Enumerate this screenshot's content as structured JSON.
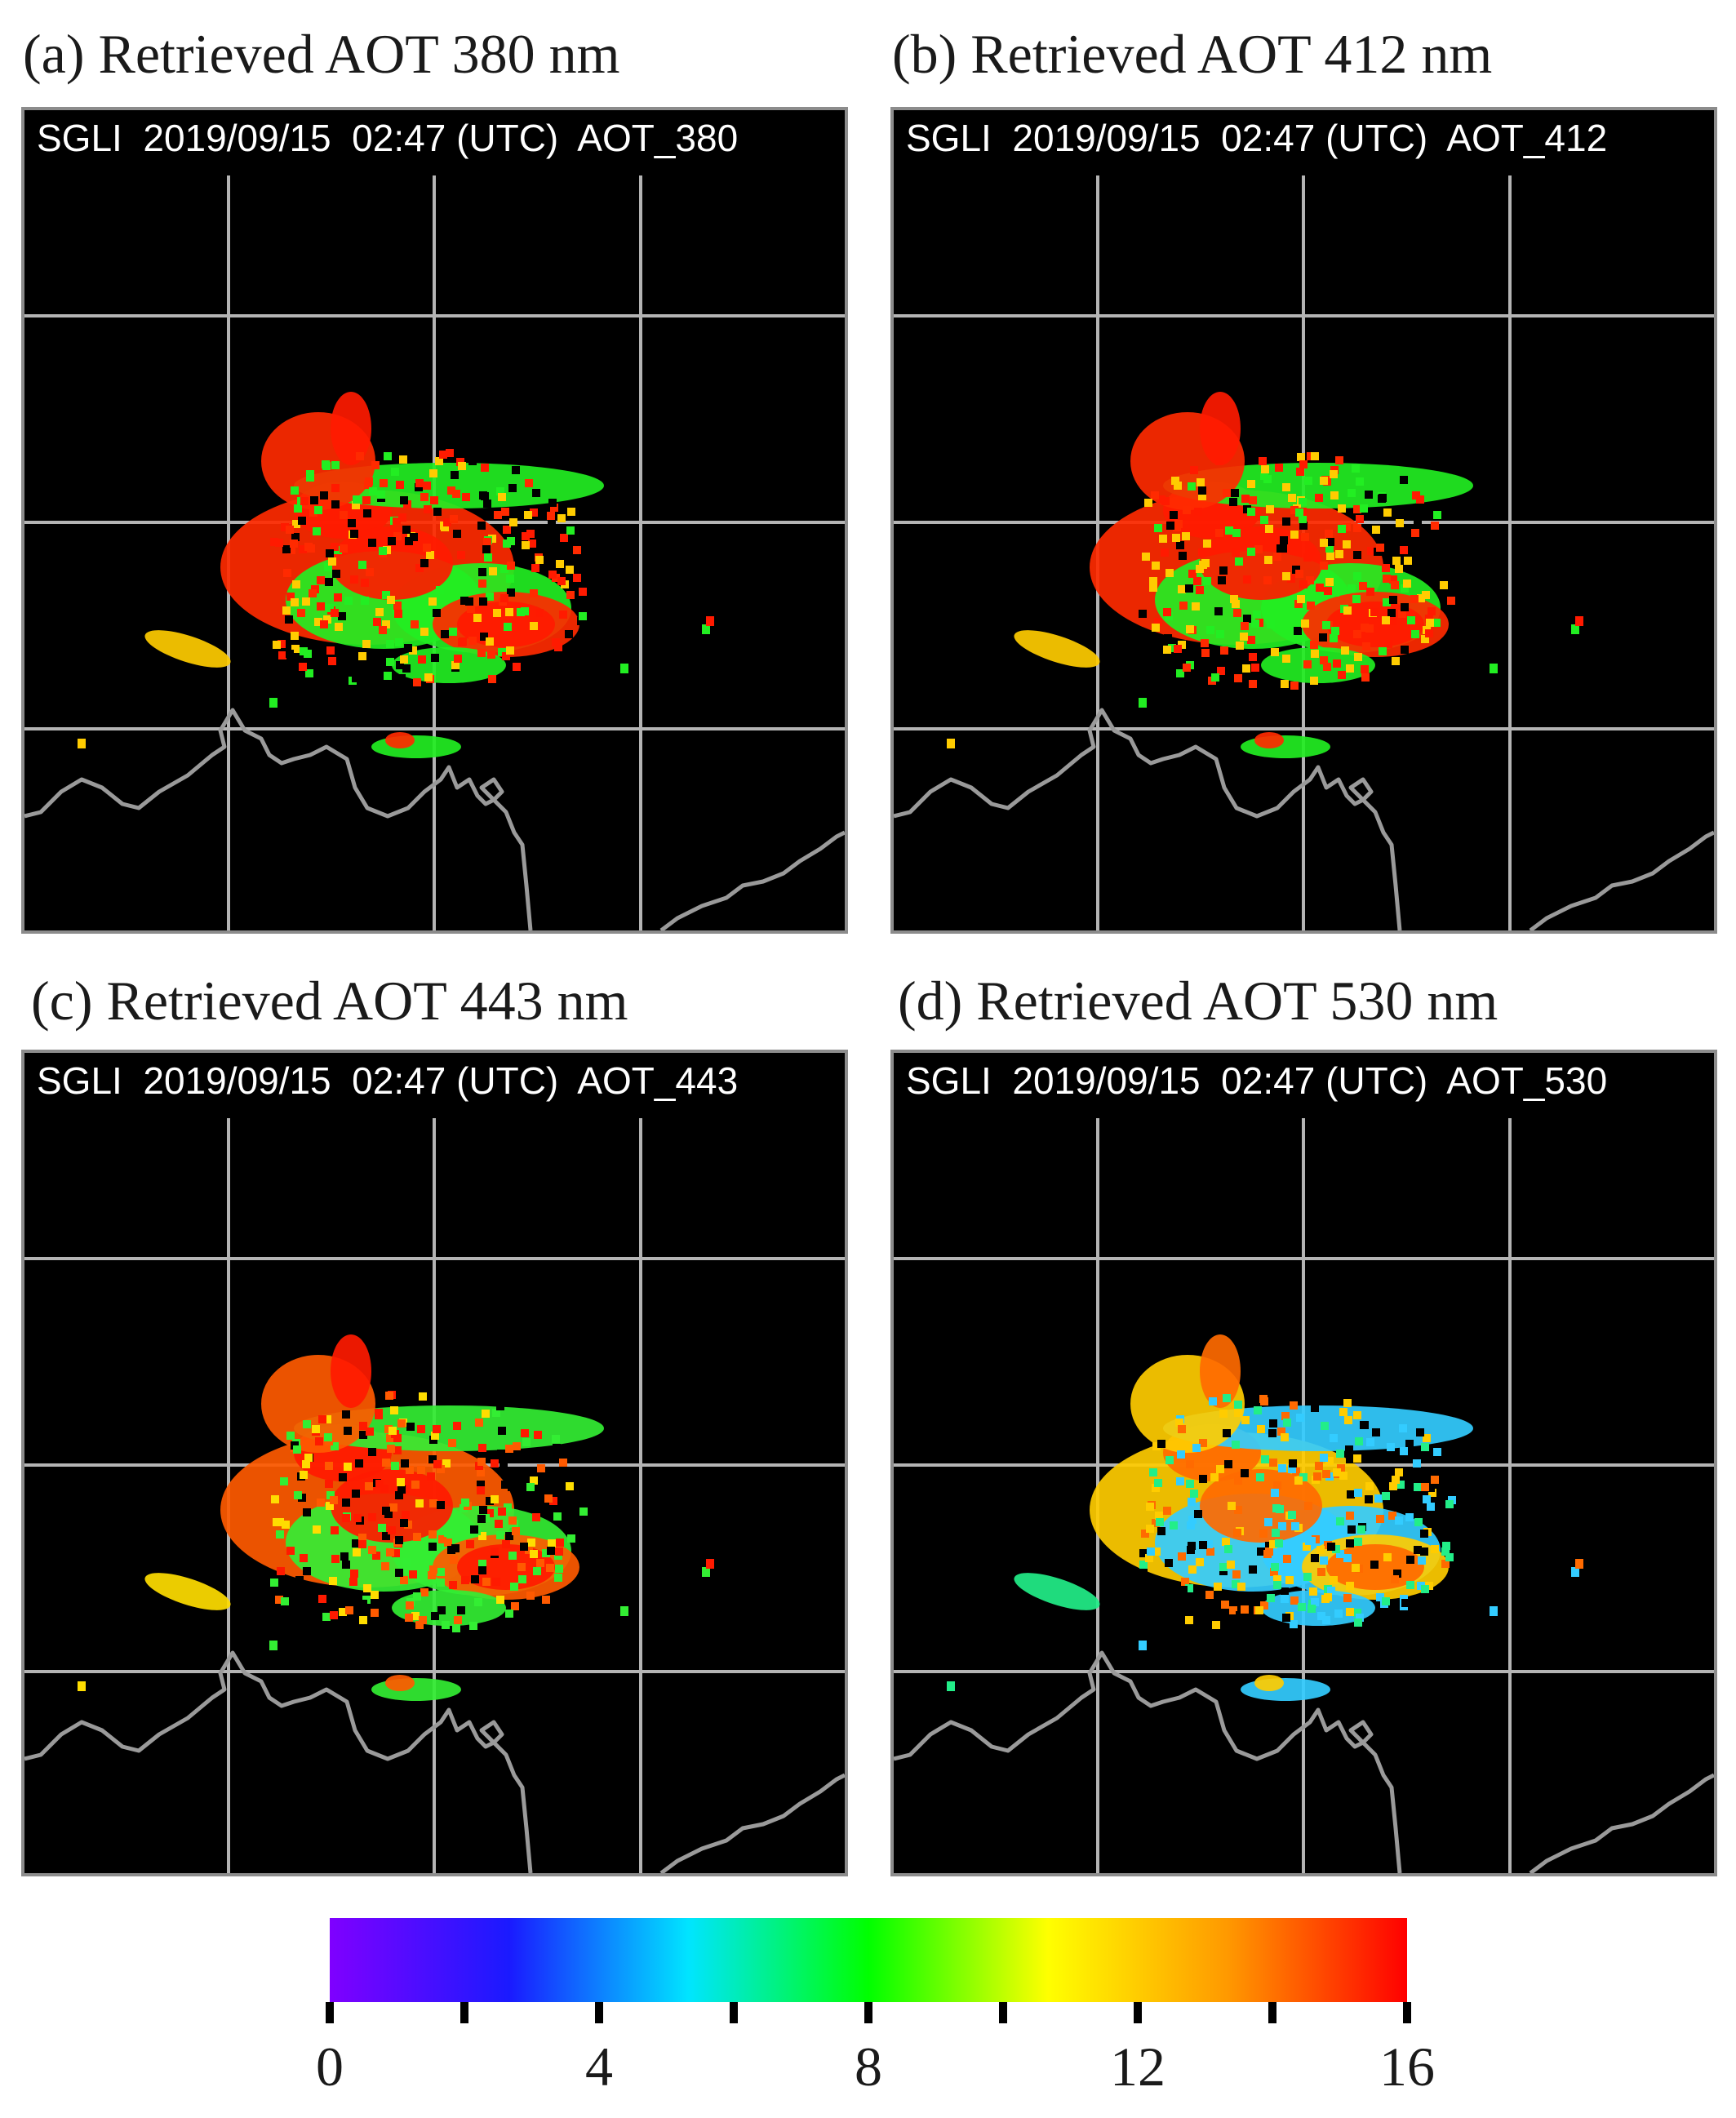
{
  "panels": [
    {
      "title": "(a) Retrieved AOT 380 nm",
      "info": "SGLI  2019/09/15  02:47 (UTC)  AOT_380",
      "band": "380"
    },
    {
      "title": "(b) Retrieved AOT 412 nm",
      "info": "SGLI  2019/09/15  02:47 (UTC)  AOT_412",
      "band": "412"
    },
    {
      "title": "(c) Retrieved AOT 443 nm",
      "info": "SGLI  2019/09/15  02:47 (UTC)  AOT_443",
      "band": "443"
    },
    {
      "title": "(d) Retrieved AOT 530 nm",
      "info": "SGLI  2019/09/15  02:47 (UTC)  AOT_530",
      "band": "530"
    }
  ],
  "colorbar": {
    "min": 0,
    "max": 16,
    "tick_labels": [
      "0",
      "4",
      "8",
      "12",
      "16"
    ],
    "minor_ticks": [
      0,
      2,
      4,
      6,
      8,
      10,
      12,
      14,
      16
    ],
    "colors": [
      "#7f00ff",
      "#1a1aff",
      "#00e5ff",
      "#00ff00",
      "#ffff00",
      "#ff9900",
      "#ff0000"
    ]
  },
  "colors": {
    "background": "#000000",
    "gridline": "#b4b4b4",
    "coastline": "#9a9a9a",
    "plume_high": "#ff2200",
    "plume_mid": "#22ee22",
    "plume_low": "#33ccff"
  }
}
